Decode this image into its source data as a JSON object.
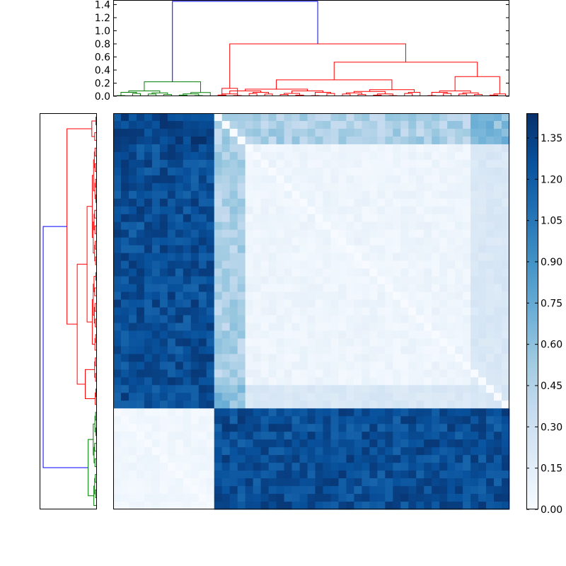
{
  "chart_data": [
    {
      "type": "dendrogram",
      "orientation": "top",
      "yticks": [
        0.0,
        0.2,
        0.4,
        0.6,
        0.8,
        1.0,
        1.2,
        1.4
      ],
      "ytick_labels": [
        "0.0",
        "0.2",
        "0.4",
        "0.6",
        "0.8",
        "1.0",
        "1.2",
        "1.4"
      ],
      "ylim": [
        0,
        1.47
      ],
      "n_leaves": 51,
      "clusters": [
        {
          "color": "green",
          "leaves": 13
        },
        {
          "color": "red",
          "leaves": 38
        }
      ],
      "link_color": "blue",
      "root_height": 1.45,
      "major_merge_heights": {
        "red_root": 0.8,
        "red_sub": 0.52,
        "green_root": 0.22
      }
    },
    {
      "type": "dendrogram",
      "orientation": "left",
      "n_leaves": 51,
      "clusters": [
        {
          "color": "red",
          "leaves": 38
        },
        {
          "color": "green",
          "leaves": 13
        }
      ],
      "link_color": "blue"
    },
    {
      "type": "heatmap",
      "colormap": "Blues",
      "rows": 51,
      "cols": 51,
      "blocks": [
        {
          "rows": "red",
          "cols": "green",
          "value": 1.3
        },
        {
          "rows": "green",
          "cols": "red",
          "value": 1.3
        },
        {
          "rows": "red",
          "cols": "red",
          "value": 0.05
        },
        {
          "rows": "green",
          "cols": "green",
          "value": 0.03
        }
      ],
      "diagonal_value": 0.0,
      "colorbar": {
        "range": [
          0.0,
          1.44
        ],
        "ticks": [
          0.0,
          0.15,
          0.3,
          0.45,
          0.6,
          0.75,
          0.9,
          1.05,
          1.2,
          1.35
        ],
        "tick_labels": [
          "0.00",
          "0.15",
          "0.30",
          "0.45",
          "0.60",
          "0.75",
          "0.90",
          "1.05",
          "1.20",
          "1.35"
        ]
      }
    }
  ],
  "colors": {
    "cluster_red": "#ff0000",
    "cluster_green": "#008000",
    "link_blue": "#0000ff",
    "frame": "#000000"
  }
}
